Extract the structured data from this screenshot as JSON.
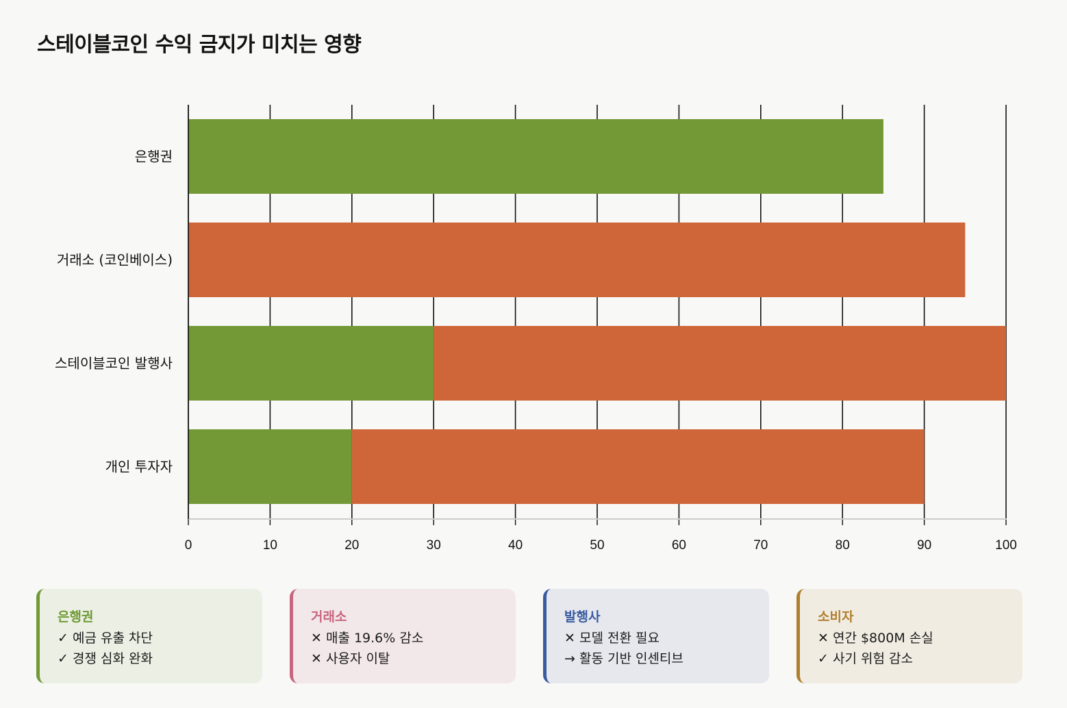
{
  "title": "스테이블코인 수익 금지가 미치는 영향",
  "chart_data": {
    "type": "bar",
    "orientation": "horizontal",
    "stacked": true,
    "categories": [
      "은행권",
      "거래소 (코인베이스)",
      "스테이블코인 발행사",
      "개인 투자자"
    ],
    "series": [
      {
        "values": [
          85,
          0,
          30,
          20
        ],
        "color": "#739836"
      },
      {
        "values": [
          0,
          95,
          70,
          70
        ],
        "color": "#cf663a"
      }
    ],
    "xlim": [
      0,
      100
    ],
    "xticks": [
      "0",
      "10",
      "20",
      "30",
      "40",
      "50",
      "60",
      "70",
      "80",
      "90",
      "100"
    ],
    "grid": true,
    "legend": "none"
  },
  "cards": [
    {
      "title": "은행권",
      "lines": [
        "✓ 예금 유출 차단",
        "✓ 경쟁 심화 완화"
      ],
      "accent": "#6f9a35",
      "bg": "#ebefe4"
    },
    {
      "title": "거래소",
      "lines": [
        "✕ 매출 19.6% 감소",
        "✕ 사용자 이탈"
      ],
      "accent": "#c9647e",
      "bg": "#f3e8e9"
    },
    {
      "title": "발행사",
      "lines": [
        "✕ 모델 전환 필요",
        "→ 활동 기반 인센티브"
      ],
      "accent": "#3a5ba0",
      "bg": "#e6e8ee"
    },
    {
      "title": "소비자",
      "lines": [
        "✕ 연간 $800M 손실",
        "✓ 사기 위험 감소"
      ],
      "accent": "#b07f2e",
      "bg": "#f1ece2"
    }
  ]
}
